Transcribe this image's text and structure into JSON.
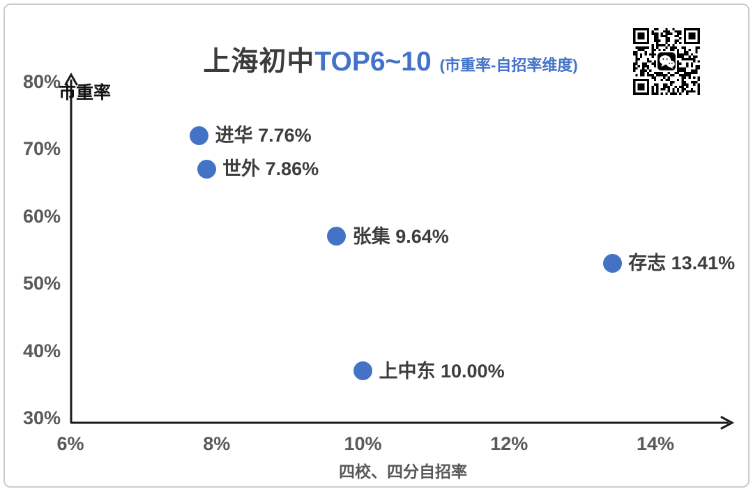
{
  "title": {
    "main": "上海初中",
    "highlight": "TOP6~10",
    "subtitle": "(市重率-自招率维度)"
  },
  "colors": {
    "point_blue": "#4472C4",
    "title_blue": "#4273C8",
    "title_dark": "#3B3B3B",
    "tick_gray": "#595959",
    "label_dark": "#3D3D3D",
    "axis_black": "#1A1A1A"
  },
  "qr": {
    "present": true,
    "center_icon": "wechat"
  },
  "chart_data": {
    "type": "scatter",
    "title": "上海初中TOP6~10 (市重率-自招率维度)",
    "xlabel": "四校、四分自招率",
    "ylabel": "市重率",
    "xlim": [
      6,
      15
    ],
    "ylim": [
      30,
      80
    ],
    "grid": false,
    "legend": "none",
    "point_color": "#4472C4",
    "x_ticks": [
      {
        "label": "6%",
        "value": 6
      },
      {
        "label": "8%",
        "value": 8
      },
      {
        "label": "10%",
        "value": 10
      },
      {
        "label": "12%",
        "value": 12
      },
      {
        "label": "14%",
        "value": 14
      }
    ],
    "y_ticks": [
      {
        "label": "80%",
        "value": 80
      },
      {
        "label": "70%",
        "value": 70
      },
      {
        "label": "60%",
        "value": 60
      },
      {
        "label": "50%",
        "value": 50
      },
      {
        "label": "40%",
        "value": 40
      },
      {
        "label": "30%",
        "value": 30
      }
    ],
    "points": [
      {
        "name": "进华",
        "x": 7.76,
        "y": 72,
        "label": "进华 7.76%"
      },
      {
        "name": "世外",
        "x": 7.86,
        "y": 67,
        "label": "世外 7.86%"
      },
      {
        "name": "张集",
        "x": 9.64,
        "y": 57,
        "label": "张集 9.64%"
      },
      {
        "name": "存志",
        "x": 13.41,
        "y": 53,
        "label": "存志 13.41%"
      },
      {
        "name": "上中东",
        "x": 10.0,
        "y": 37,
        "label": "上中东 10.00%"
      }
    ]
  }
}
